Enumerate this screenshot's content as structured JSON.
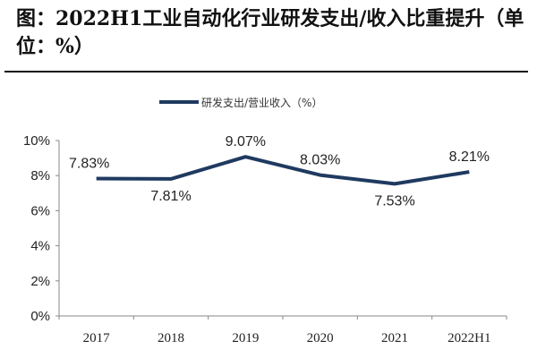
{
  "title": "图：2022H1工业自动化行业研发支出/收入比重提升（单位：%）",
  "chart_data": {
    "type": "line",
    "title": "图：2022H1工业自动化行业研发支出/收入比重提升（单位：%）",
    "categories": [
      "2017",
      "2018",
      "2019",
      "2020",
      "2021",
      "2022H1"
    ],
    "series": [
      {
        "name": "研发支出/营业收入（%）",
        "values": [
          7.83,
          7.81,
          9.07,
          8.03,
          7.53,
          8.21
        ],
        "labels": [
          "7.83%",
          "7.81%",
          "9.07%",
          "8.03%",
          "7.53%",
          "8.21%"
        ],
        "color": "#1f3a60"
      }
    ],
    "yticks": [
      "0%",
      "2%",
      "4%",
      "6%",
      "8%",
      "10%"
    ],
    "ylim": [
      0,
      10
    ],
    "grid": false,
    "legend": "top"
  }
}
